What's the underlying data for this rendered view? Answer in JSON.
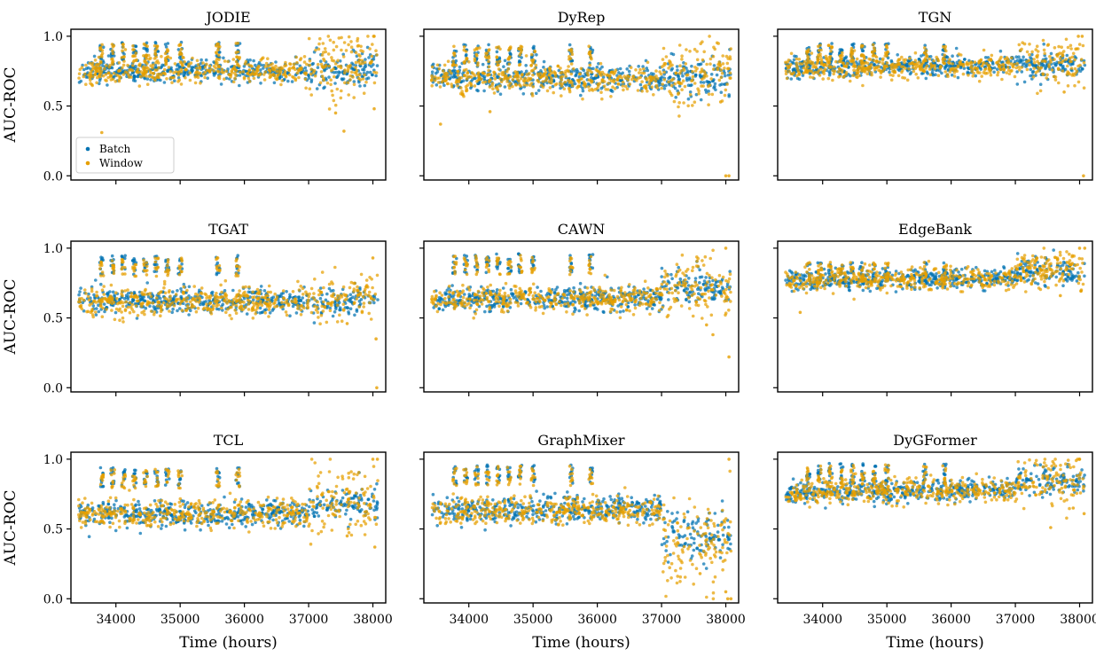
{
  "colors": {
    "batch": "#0072B2",
    "window": "#E69F00"
  },
  "legend": {
    "placement": "lower-left",
    "entries": [
      "Batch",
      "Window"
    ]
  },
  "chart_data": [
    {
      "type": "scatter",
      "title": "JODIE",
      "xlabel": "",
      "ylabel": "AUC-ROC",
      "xlim": [
        33300,
        38200
      ],
      "ylim": [
        -0.03,
        1.05
      ],
      "xticks": [
        34000,
        35000,
        36000,
        37000,
        38000
      ],
      "yticks": [
        0.0,
        0.5,
        1.0
      ],
      "ytick_labels": [
        "0.0",
        "0.5",
        "1.0"
      ],
      "show_xtick_labels": false,
      "show_legend": true,
      "series": [
        {
          "name": "Batch",
          "color": "#0072B2",
          "profile": {
            "base_start": 0.75,
            "base_end": 0.75,
            "tail_start_x": 37000,
            "tail_mean": 0.76,
            "noise": 0.04,
            "tail_noise": 0.06,
            "spikes": true,
            "spike_top": 0.96
          }
        },
        {
          "name": "Window",
          "color": "#E69F00",
          "profile": {
            "base_start": 0.75,
            "base_end": 0.76,
            "tail_start_x": 37000,
            "tail_mean": 0.78,
            "noise": 0.045,
            "tail_noise": 0.1,
            "spikes": true,
            "spike_top": 0.95,
            "outliers": [
              [
                33780,
                0.31
              ],
              [
                37550,
                0.32
              ],
              [
                38020,
                0.48
              ],
              [
                38020,
                1.0
              ],
              [
                37420,
                0.45
              ]
            ]
          }
        }
      ]
    },
    {
      "type": "scatter",
      "title": "DyRep",
      "xlabel": "",
      "ylabel": "",
      "xlim": [
        33300,
        38200
      ],
      "ylim": [
        -0.03,
        1.05
      ],
      "xticks": [
        34000,
        35000,
        36000,
        37000,
        38000
      ],
      "yticks": [
        0.0,
        0.5,
        1.0
      ],
      "ytick_labels": [
        "",
        "",
        ""
      ],
      "show_xtick_labels": false,
      "show_legend": false,
      "series": [
        {
          "name": "Batch",
          "color": "#0072B2",
          "profile": {
            "base_start": 0.71,
            "base_end": 0.69,
            "tail_start_x": 37000,
            "tail_mean": 0.7,
            "noise": 0.045,
            "tail_noise": 0.07,
            "spikes": true,
            "spike_top": 0.94
          }
        },
        {
          "name": "Window",
          "color": "#E69F00",
          "profile": {
            "base_start": 0.71,
            "base_end": 0.68,
            "tail_start_x": 37000,
            "tail_mean": 0.74,
            "noise": 0.05,
            "tail_noise": 0.12,
            "spikes": true,
            "spike_top": 0.93,
            "outliers": [
              [
                33560,
                0.37
              ],
              [
                34330,
                0.46
              ],
              [
                38000,
                0.0
              ],
              [
                38050,
                0.0
              ],
              [
                37920,
                0.53
              ]
            ]
          }
        }
      ]
    },
    {
      "type": "scatter",
      "title": "TGN",
      "xlabel": "",
      "ylabel": "",
      "xlim": [
        33300,
        38200
      ],
      "ylim": [
        -0.03,
        1.05
      ],
      "xticks": [
        34000,
        35000,
        36000,
        37000,
        38000
      ],
      "yticks": [
        0.0,
        0.5,
        1.0
      ],
      "ytick_labels": [
        "",
        "",
        ""
      ],
      "show_xtick_labels": false,
      "show_legend": false,
      "series": [
        {
          "name": "Batch",
          "color": "#0072B2",
          "profile": {
            "base_start": 0.77,
            "base_end": 0.8,
            "tail_start_x": 37000,
            "tail_mean": 0.8,
            "noise": 0.035,
            "tail_noise": 0.05,
            "spikes": true,
            "spike_top": 0.95
          }
        },
        {
          "name": "Window",
          "color": "#E69F00",
          "profile": {
            "base_start": 0.77,
            "base_end": 0.79,
            "tail_start_x": 37000,
            "tail_mean": 0.83,
            "noise": 0.04,
            "tail_noise": 0.09,
            "spikes": true,
            "spike_top": 0.94,
            "outliers": [
              [
                38060,
                0.0
              ],
              [
                37980,
                1.0
              ],
              [
                38040,
                1.0
              ],
              [
                37760,
                0.6
              ]
            ]
          }
        }
      ]
    },
    {
      "type": "scatter",
      "title": "TGAT",
      "xlabel": "",
      "ylabel": "AUC-ROC",
      "xlim": [
        33300,
        38200
      ],
      "ylim": [
        -0.03,
        1.05
      ],
      "xticks": [
        34000,
        35000,
        36000,
        37000,
        38000
      ],
      "yticks": [
        0.0,
        0.5,
        1.0
      ],
      "ytick_labels": [
        "0.0",
        "0.5",
        "1.0"
      ],
      "show_xtick_labels": false,
      "show_legend": false,
      "series": [
        {
          "name": "Batch",
          "color": "#0072B2",
          "profile": {
            "base_start": 0.62,
            "base_end": 0.62,
            "tail_start_x": 37000,
            "tail_mean": 0.62,
            "noise": 0.045,
            "tail_noise": 0.06,
            "spikes": true,
            "spike_top": 0.95
          }
        },
        {
          "name": "Window",
          "color": "#E69F00",
          "profile": {
            "base_start": 0.62,
            "base_end": 0.62,
            "tail_start_x": 37000,
            "tail_mean": 0.64,
            "noise": 0.05,
            "tail_noise": 0.09,
            "spikes": true,
            "spike_top": 0.93,
            "outliers": [
              [
                38060,
                0.0
              ],
              [
                38050,
                0.35
              ],
              [
                38000,
                0.93
              ],
              [
                37600,
                0.46
              ]
            ]
          }
        }
      ]
    },
    {
      "type": "scatter",
      "title": "CAWN",
      "xlabel": "",
      "ylabel": "",
      "xlim": [
        33300,
        38200
      ],
      "ylim": [
        -0.03,
        1.05
      ],
      "xticks": [
        34000,
        35000,
        36000,
        37000,
        38000
      ],
      "yticks": [
        0.0,
        0.5,
        1.0
      ],
      "ytick_labels": [
        "",
        "",
        ""
      ],
      "show_xtick_labels": false,
      "show_legend": false,
      "series": [
        {
          "name": "Batch",
          "color": "#0072B2",
          "profile": {
            "base_start": 0.63,
            "base_end": 0.64,
            "tail_start_x": 37000,
            "tail_mean": 0.72,
            "noise": 0.04,
            "tail_noise": 0.06,
            "spikes": true,
            "spike_top": 0.96
          }
        },
        {
          "name": "Window",
          "color": "#E69F00",
          "profile": {
            "base_start": 0.63,
            "base_end": 0.64,
            "tail_start_x": 37000,
            "tail_mean": 0.72,
            "noise": 0.045,
            "tail_noise": 0.1,
            "spikes": true,
            "spike_top": 0.95,
            "outliers": [
              [
                38050,
                0.22
              ],
              [
                37800,
                0.38
              ],
              [
                38000,
                1.0
              ],
              [
                37700,
                0.45
              ]
            ]
          }
        }
      ]
    },
    {
      "type": "scatter",
      "title": "EdgeBank",
      "xlabel": "",
      "ylabel": "",
      "xlim": [
        33300,
        38200
      ],
      "ylim": [
        -0.03,
        1.05
      ],
      "xticks": [
        34000,
        35000,
        36000,
        37000,
        38000
      ],
      "yticks": [
        0.0,
        0.5,
        1.0
      ],
      "ytick_labels": [
        "",
        "",
        ""
      ],
      "show_xtick_labels": false,
      "show_legend": false,
      "series": [
        {
          "name": "Batch",
          "color": "#0072B2",
          "profile": {
            "base_start": 0.76,
            "base_end": 0.79,
            "tail_start_x": 37000,
            "tail_mean": 0.84,
            "noise": 0.035,
            "tail_noise": 0.05,
            "spikes": true,
            "spike_top": 0.9
          }
        },
        {
          "name": "Window",
          "color": "#E69F00",
          "profile": {
            "base_start": 0.76,
            "base_end": 0.79,
            "tail_start_x": 37000,
            "tail_mean": 0.85,
            "noise": 0.04,
            "tail_noise": 0.07,
            "spikes": true,
            "spike_top": 0.9,
            "outliers": [
              [
                33650,
                0.54
              ],
              [
                38000,
                1.0
              ],
              [
                38080,
                1.0
              ],
              [
                37700,
                0.66
              ]
            ]
          }
        }
      ]
    },
    {
      "type": "scatter",
      "title": "TCL",
      "xlabel": "Time (hours)",
      "ylabel": "AUC-ROC",
      "xlim": [
        33300,
        38200
      ],
      "ylim": [
        -0.03,
        1.05
      ],
      "xticks": [
        34000,
        35000,
        36000,
        37000,
        38000
      ],
      "yticks": [
        0.0,
        0.5,
        1.0
      ],
      "ytick_labels": [
        "0.0",
        "0.5",
        "1.0"
      ],
      "show_xtick_labels": true,
      "xtick_labels": [
        "34000",
        "35000",
        "36000",
        "37000",
        "38000"
      ],
      "show_legend": false,
      "series": [
        {
          "name": "Batch",
          "color": "#0072B2",
          "profile": {
            "base_start": 0.6,
            "base_end": 0.61,
            "tail_start_x": 37000,
            "tail_mean": 0.68,
            "noise": 0.045,
            "tail_noise": 0.06,
            "spikes": true,
            "spike_top": 0.94
          }
        },
        {
          "name": "Window",
          "color": "#E69F00",
          "profile": {
            "base_start": 0.6,
            "base_end": 0.61,
            "tail_start_x": 37000,
            "tail_mean": 0.7,
            "noise": 0.05,
            "tail_noise": 0.12,
            "spikes": true,
            "spike_top": 0.93,
            "outliers": [
              [
                38030,
                0.37
              ],
              [
                38000,
                1.0
              ],
              [
                38070,
                1.0
              ],
              [
                37600,
                0.45
              ]
            ]
          }
        }
      ]
    },
    {
      "type": "scatter",
      "title": "GraphMixer",
      "xlabel": "Time (hours)",
      "ylabel": "",
      "xlim": [
        33300,
        38200
      ],
      "ylim": [
        -0.03,
        1.05
      ],
      "xticks": [
        34000,
        35000,
        36000,
        37000,
        38000
      ],
      "yticks": [
        0.0,
        0.5,
        1.0
      ],
      "ytick_labels": [
        "",
        "",
        ""
      ],
      "show_xtick_labels": true,
      "xtick_labels": [
        "34000",
        "35000",
        "36000",
        "37000",
        "38000"
      ],
      "show_legend": false,
      "series": [
        {
          "name": "Batch",
          "color": "#0072B2",
          "profile": {
            "base_start": 0.63,
            "base_end": 0.65,
            "tail_start_x": 37000,
            "tail_mean": 0.45,
            "noise": 0.045,
            "tail_noise": 0.09,
            "spikes": true,
            "spike_top": 0.96
          }
        },
        {
          "name": "Window",
          "color": "#E69F00",
          "profile": {
            "base_start": 0.63,
            "base_end": 0.64,
            "tail_start_x": 37000,
            "tail_mean": 0.42,
            "noise": 0.05,
            "tail_noise": 0.16,
            "spikes": true,
            "spike_top": 0.95,
            "outliers": [
              [
                38030,
                0.0
              ],
              [
                38080,
                0.0
              ],
              [
                38000,
                0.05
              ],
              [
                38050,
                1.0
              ],
              [
                37600,
                0.18
              ]
            ]
          }
        }
      ]
    },
    {
      "type": "scatter",
      "title": "DyGFormer",
      "xlabel": "Time (hours)",
      "ylabel": "",
      "xlim": [
        33300,
        38200
      ],
      "ylim": [
        -0.03,
        1.05
      ],
      "xticks": [
        34000,
        35000,
        36000,
        37000,
        38000
      ],
      "yticks": [
        0.0,
        0.5,
        1.0
      ],
      "ytick_labels": [
        "",
        "",
        ""
      ],
      "show_xtick_labels": true,
      "xtick_labels": [
        "34000",
        "35000",
        "36000",
        "37000",
        "38000"
      ],
      "show_legend": false,
      "series": [
        {
          "name": "Batch",
          "color": "#0072B2",
          "profile": {
            "base_start": 0.76,
            "base_end": 0.78,
            "tail_start_x": 37000,
            "tail_mean": 0.84,
            "noise": 0.035,
            "tail_noise": 0.05,
            "spikes": true,
            "spike_top": 0.97
          }
        },
        {
          "name": "Window",
          "color": "#E69F00",
          "profile": {
            "base_start": 0.76,
            "base_end": 0.78,
            "tail_start_x": 37000,
            "tail_mean": 0.84,
            "noise": 0.04,
            "tail_noise": 0.08,
            "spikes": true,
            "spike_top": 0.96,
            "outliers": [
              [
                37550,
                0.51
              ],
              [
                38070,
                0.61
              ],
              [
                38000,
                1.0
              ],
              [
                37900,
                0.65
              ]
            ]
          }
        }
      ]
    }
  ]
}
